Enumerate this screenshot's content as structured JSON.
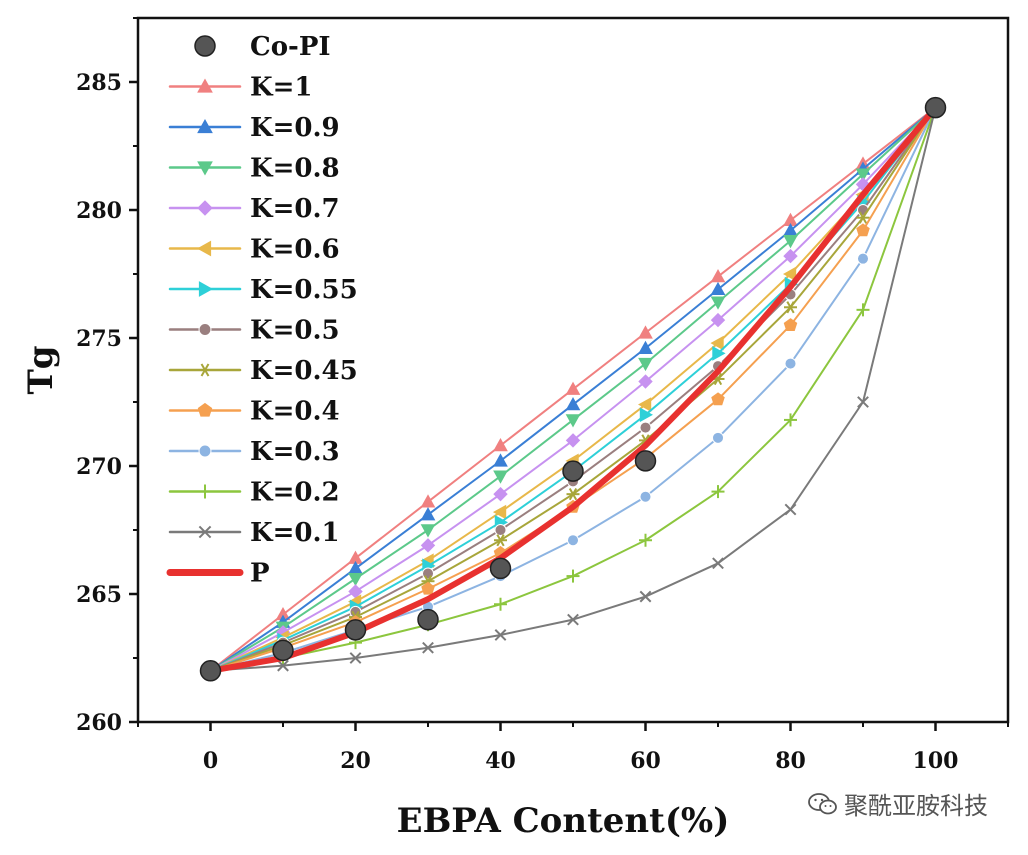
{
  "chart_data": {
    "type": "line",
    "xlabel": "EBPA Content(%)",
    "ylabel": "Tg",
    "xlim": [
      -10,
      110
    ],
    "ylim": [
      260,
      287.5
    ],
    "xticks": [
      0,
      20,
      40,
      60,
      80,
      100
    ],
    "yticks": [
      260,
      265,
      270,
      275,
      280,
      285
    ],
    "x": [
      0,
      10,
      20,
      30,
      40,
      50,
      60,
      70,
      80,
      90,
      100
    ],
    "legend_position": "top-left",
    "scatter": {
      "name": "Co-PI",
      "color": "#555555",
      "points": [
        [
          0,
          262
        ],
        [
          10,
          262.8
        ],
        [
          20,
          263.6
        ],
        [
          30,
          264
        ],
        [
          40,
          266
        ],
        [
          50,
          269.8
        ],
        [
          60,
          270.2
        ],
        [
          100,
          284
        ]
      ]
    },
    "series": [
      {
        "name": "K=1",
        "color": "#f08080",
        "marker": "triangle-up",
        "values": [
          262,
          264.2,
          266.4,
          268.6,
          270.8,
          273.0,
          275.2,
          277.4,
          279.6,
          281.8,
          284
        ]
      },
      {
        "name": "K=0.9",
        "color": "#3a7fd5",
        "marker": "triangle-up",
        "values": [
          262,
          263.9,
          266.0,
          268.1,
          270.2,
          272.4,
          274.6,
          276.9,
          279.2,
          281.6,
          284
        ]
      },
      {
        "name": "K=0.8",
        "color": "#5cc98a",
        "marker": "triangle-down",
        "values": [
          262,
          263.7,
          265.6,
          267.5,
          269.6,
          271.8,
          274.0,
          276.4,
          278.8,
          281.4,
          284
        ]
      },
      {
        "name": "K=0.7",
        "color": "#c792f0",
        "marker": "diamond",
        "values": [
          262,
          263.5,
          265.1,
          266.9,
          268.9,
          271.0,
          273.3,
          275.7,
          278.2,
          281.0,
          284
        ]
      },
      {
        "name": "K=0.6",
        "color": "#e8b84a",
        "marker": "triangle-left",
        "values": [
          262,
          263.3,
          264.7,
          266.3,
          268.2,
          270.2,
          272.4,
          274.8,
          277.5,
          280.6,
          284
        ]
      },
      {
        "name": "K=0.55",
        "color": "#2ed0d8",
        "marker": "triangle-right",
        "values": [
          262,
          263.2,
          264.5,
          266.1,
          267.8,
          269.8,
          272.0,
          274.4,
          277.1,
          280.3,
          284
        ]
      },
      {
        "name": "K=0.5",
        "color": "#9a7f7f",
        "marker": "circle",
        "values": [
          262,
          263.1,
          264.3,
          265.8,
          267.5,
          269.4,
          271.5,
          273.9,
          276.7,
          280.0,
          284
        ]
      },
      {
        "name": "K=0.45",
        "color": "#a8a63a",
        "marker": "star",
        "values": [
          262,
          263.0,
          264.1,
          265.5,
          267.1,
          268.9,
          271.0,
          273.4,
          276.2,
          279.7,
          284
        ]
      },
      {
        "name": "K=0.4",
        "color": "#f5a050",
        "marker": "pentagon",
        "values": [
          262,
          262.9,
          263.9,
          265.2,
          266.6,
          268.4,
          270.3,
          272.6,
          275.5,
          279.2,
          284
        ]
      },
      {
        "name": "K=0.3",
        "color": "#8db4e2",
        "marker": "circle",
        "values": [
          262,
          262.7,
          263.6,
          264.5,
          265.7,
          267.1,
          268.8,
          271.1,
          274.0,
          278.1,
          284
        ]
      },
      {
        "name": "K=0.2",
        "color": "#8cc63e",
        "marker": "plus",
        "values": [
          262,
          262.5,
          263.1,
          263.8,
          264.6,
          265.7,
          267.1,
          269.0,
          271.8,
          276.1,
          284
        ]
      },
      {
        "name": "K=0.1",
        "color": "#7a7a7a",
        "marker": "x",
        "values": [
          262,
          262.2,
          262.5,
          262.9,
          263.4,
          264.0,
          264.9,
          266.2,
          268.3,
          272.5,
          284
        ]
      },
      {
        "name": "P",
        "color": "#e8312f",
        "marker": "none",
        "thick": true,
        "values": [
          262,
          262.5,
          263.5,
          264.8,
          266.4,
          268.4,
          270.8,
          273.7,
          277.0,
          280.6,
          284
        ]
      }
    ]
  },
  "watermark": {
    "text": "聚酰亚胺科技",
    "icon": "wechat-icon"
  }
}
